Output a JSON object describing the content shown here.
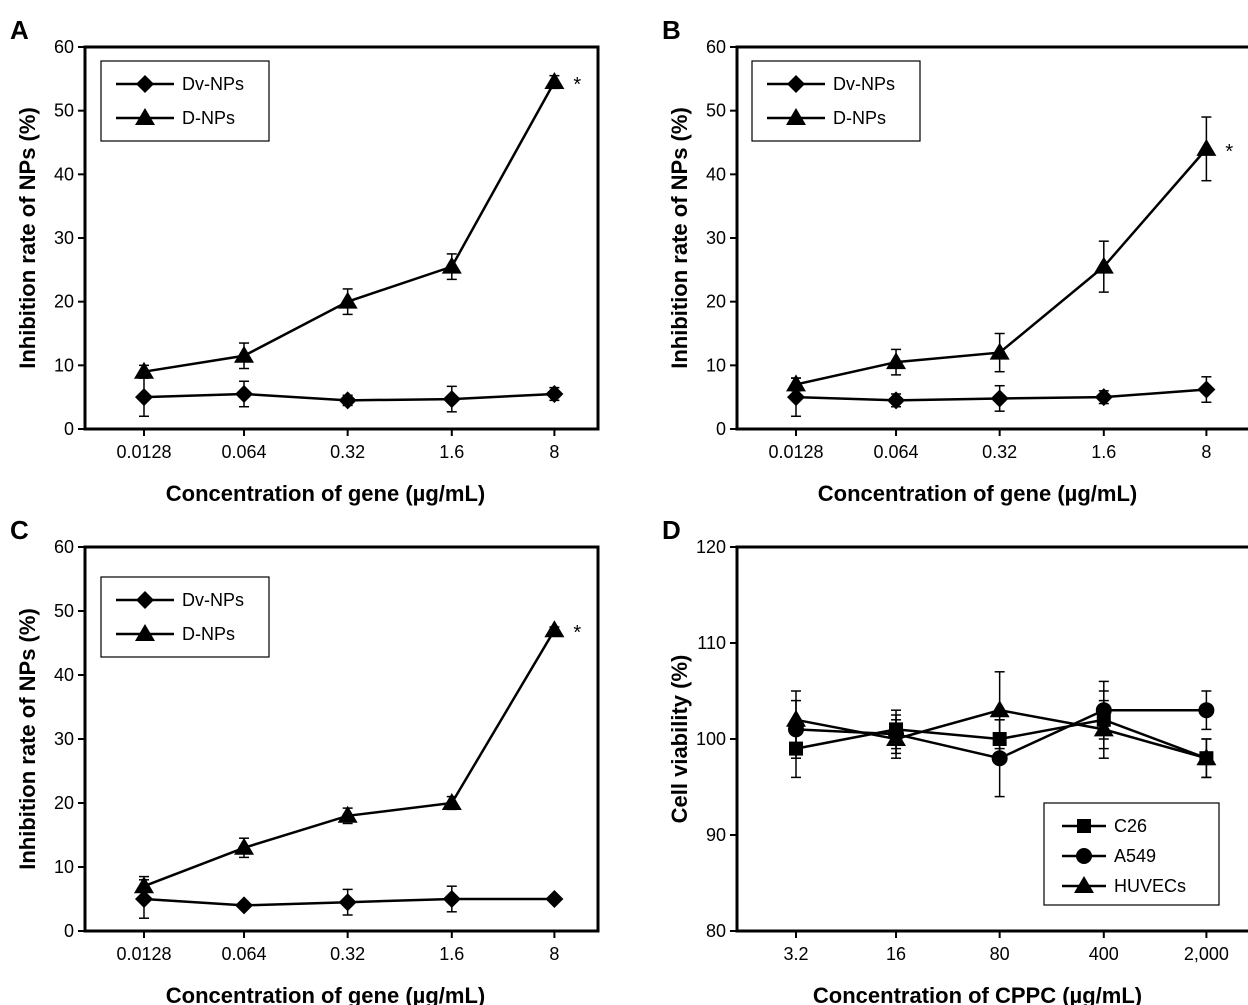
{
  "chart_data": [
    {
      "panel": "A",
      "type": "line",
      "categories": [
        "0.0128",
        "0.064",
        "0.32",
        "1.6",
        "8"
      ],
      "xlabel": "Concentration of gene (µg/mL)",
      "ylabel": "Inhibition rate of NPs (%)",
      "ylim": [
        0,
        60
      ],
      "yticks": [
        "0",
        "10",
        "20",
        "30",
        "40",
        "50",
        "60"
      ],
      "legend_position": "top-left",
      "significance": "*",
      "series": [
        {
          "name": "Dv-NPs",
          "marker": "diamond",
          "values": [
            5,
            5.5,
            4.5,
            4.7,
            5.5
          ],
          "errors": [
            3,
            2,
            0.8,
            2,
            1
          ]
        },
        {
          "name": "D-NPs",
          "marker": "triangle",
          "values": [
            9,
            11.5,
            20,
            25.5,
            54.5
          ],
          "errors": [
            1,
            2,
            2,
            2,
            1
          ]
        }
      ]
    },
    {
      "panel": "B",
      "type": "line",
      "categories": [
        "0.0128",
        "0.064",
        "0.32",
        "1.6",
        "8"
      ],
      "xlabel": "Concentration of gene (µg/mL)",
      "ylabel": "Inhibition rate of NPs (%)",
      "ylim": [
        0,
        60
      ],
      "yticks": [
        "0",
        "10",
        "20",
        "30",
        "40",
        "50",
        "60"
      ],
      "legend_position": "top-left",
      "significance": "*",
      "series": [
        {
          "name": "Dv-NPs",
          "marker": "diamond",
          "values": [
            5,
            4.5,
            4.8,
            5,
            6.2
          ],
          "errors": [
            3,
            1,
            2,
            1,
            2
          ]
        },
        {
          "name": "D-NPs",
          "marker": "triangle",
          "values": [
            7,
            10.5,
            12,
            25.5,
            44
          ],
          "errors": [
            1,
            2,
            3,
            4,
            5
          ]
        }
      ]
    },
    {
      "panel": "C",
      "type": "line",
      "categories": [
        "0.0128",
        "0.064",
        "0.32",
        "1.6",
        "8"
      ],
      "xlabel": "Concentration of gene (µg/mL)",
      "ylabel": "Inhibition rate of NPs (%)",
      "ylim": [
        0,
        60
      ],
      "yticks": [
        "0",
        "10",
        "20",
        "30",
        "40",
        "50",
        "60"
      ],
      "legend_position": "top-left",
      "significance": "*",
      "series": [
        {
          "name": "Dv-NPs",
          "marker": "diamond",
          "values": [
            5,
            4,
            4.5,
            5,
            5
          ],
          "errors": [
            3,
            0.5,
            2,
            2,
            0.5
          ]
        },
        {
          "name": "D-NPs",
          "marker": "triangle",
          "values": [
            7,
            13,
            18,
            20,
            47
          ],
          "errors": [
            1.5,
            1.5,
            1.2,
            1,
            0.5
          ]
        }
      ]
    },
    {
      "panel": "D",
      "type": "line",
      "categories": [
        "3.2",
        "16",
        "80",
        "400",
        "2,000"
      ],
      "xlabel": "Concentration of CPPC (µg/mL)",
      "ylabel": "Cell viability (%)",
      "ylim": [
        80,
        120
      ],
      "yticks": [
        "80",
        "90",
        "100",
        "110",
        "120"
      ],
      "legend_position": "bottom-right",
      "series": [
        {
          "name": "C26",
          "marker": "square",
          "values": [
            99,
            101,
            100,
            102,
            98
          ],
          "errors": [
            3,
            2,
            2,
            3,
            2
          ]
        },
        {
          "name": "A549",
          "marker": "circle",
          "values": [
            101,
            100.5,
            98,
            103,
            103
          ],
          "errors": [
            3,
            2,
            4,
            3,
            2
          ]
        },
        {
          "name": "HUVECs",
          "marker": "triangle",
          "values": [
            102,
            100,
            103,
            101,
            98
          ],
          "errors": [
            3,
            2,
            4,
            3,
            2
          ]
        }
      ]
    }
  ]
}
